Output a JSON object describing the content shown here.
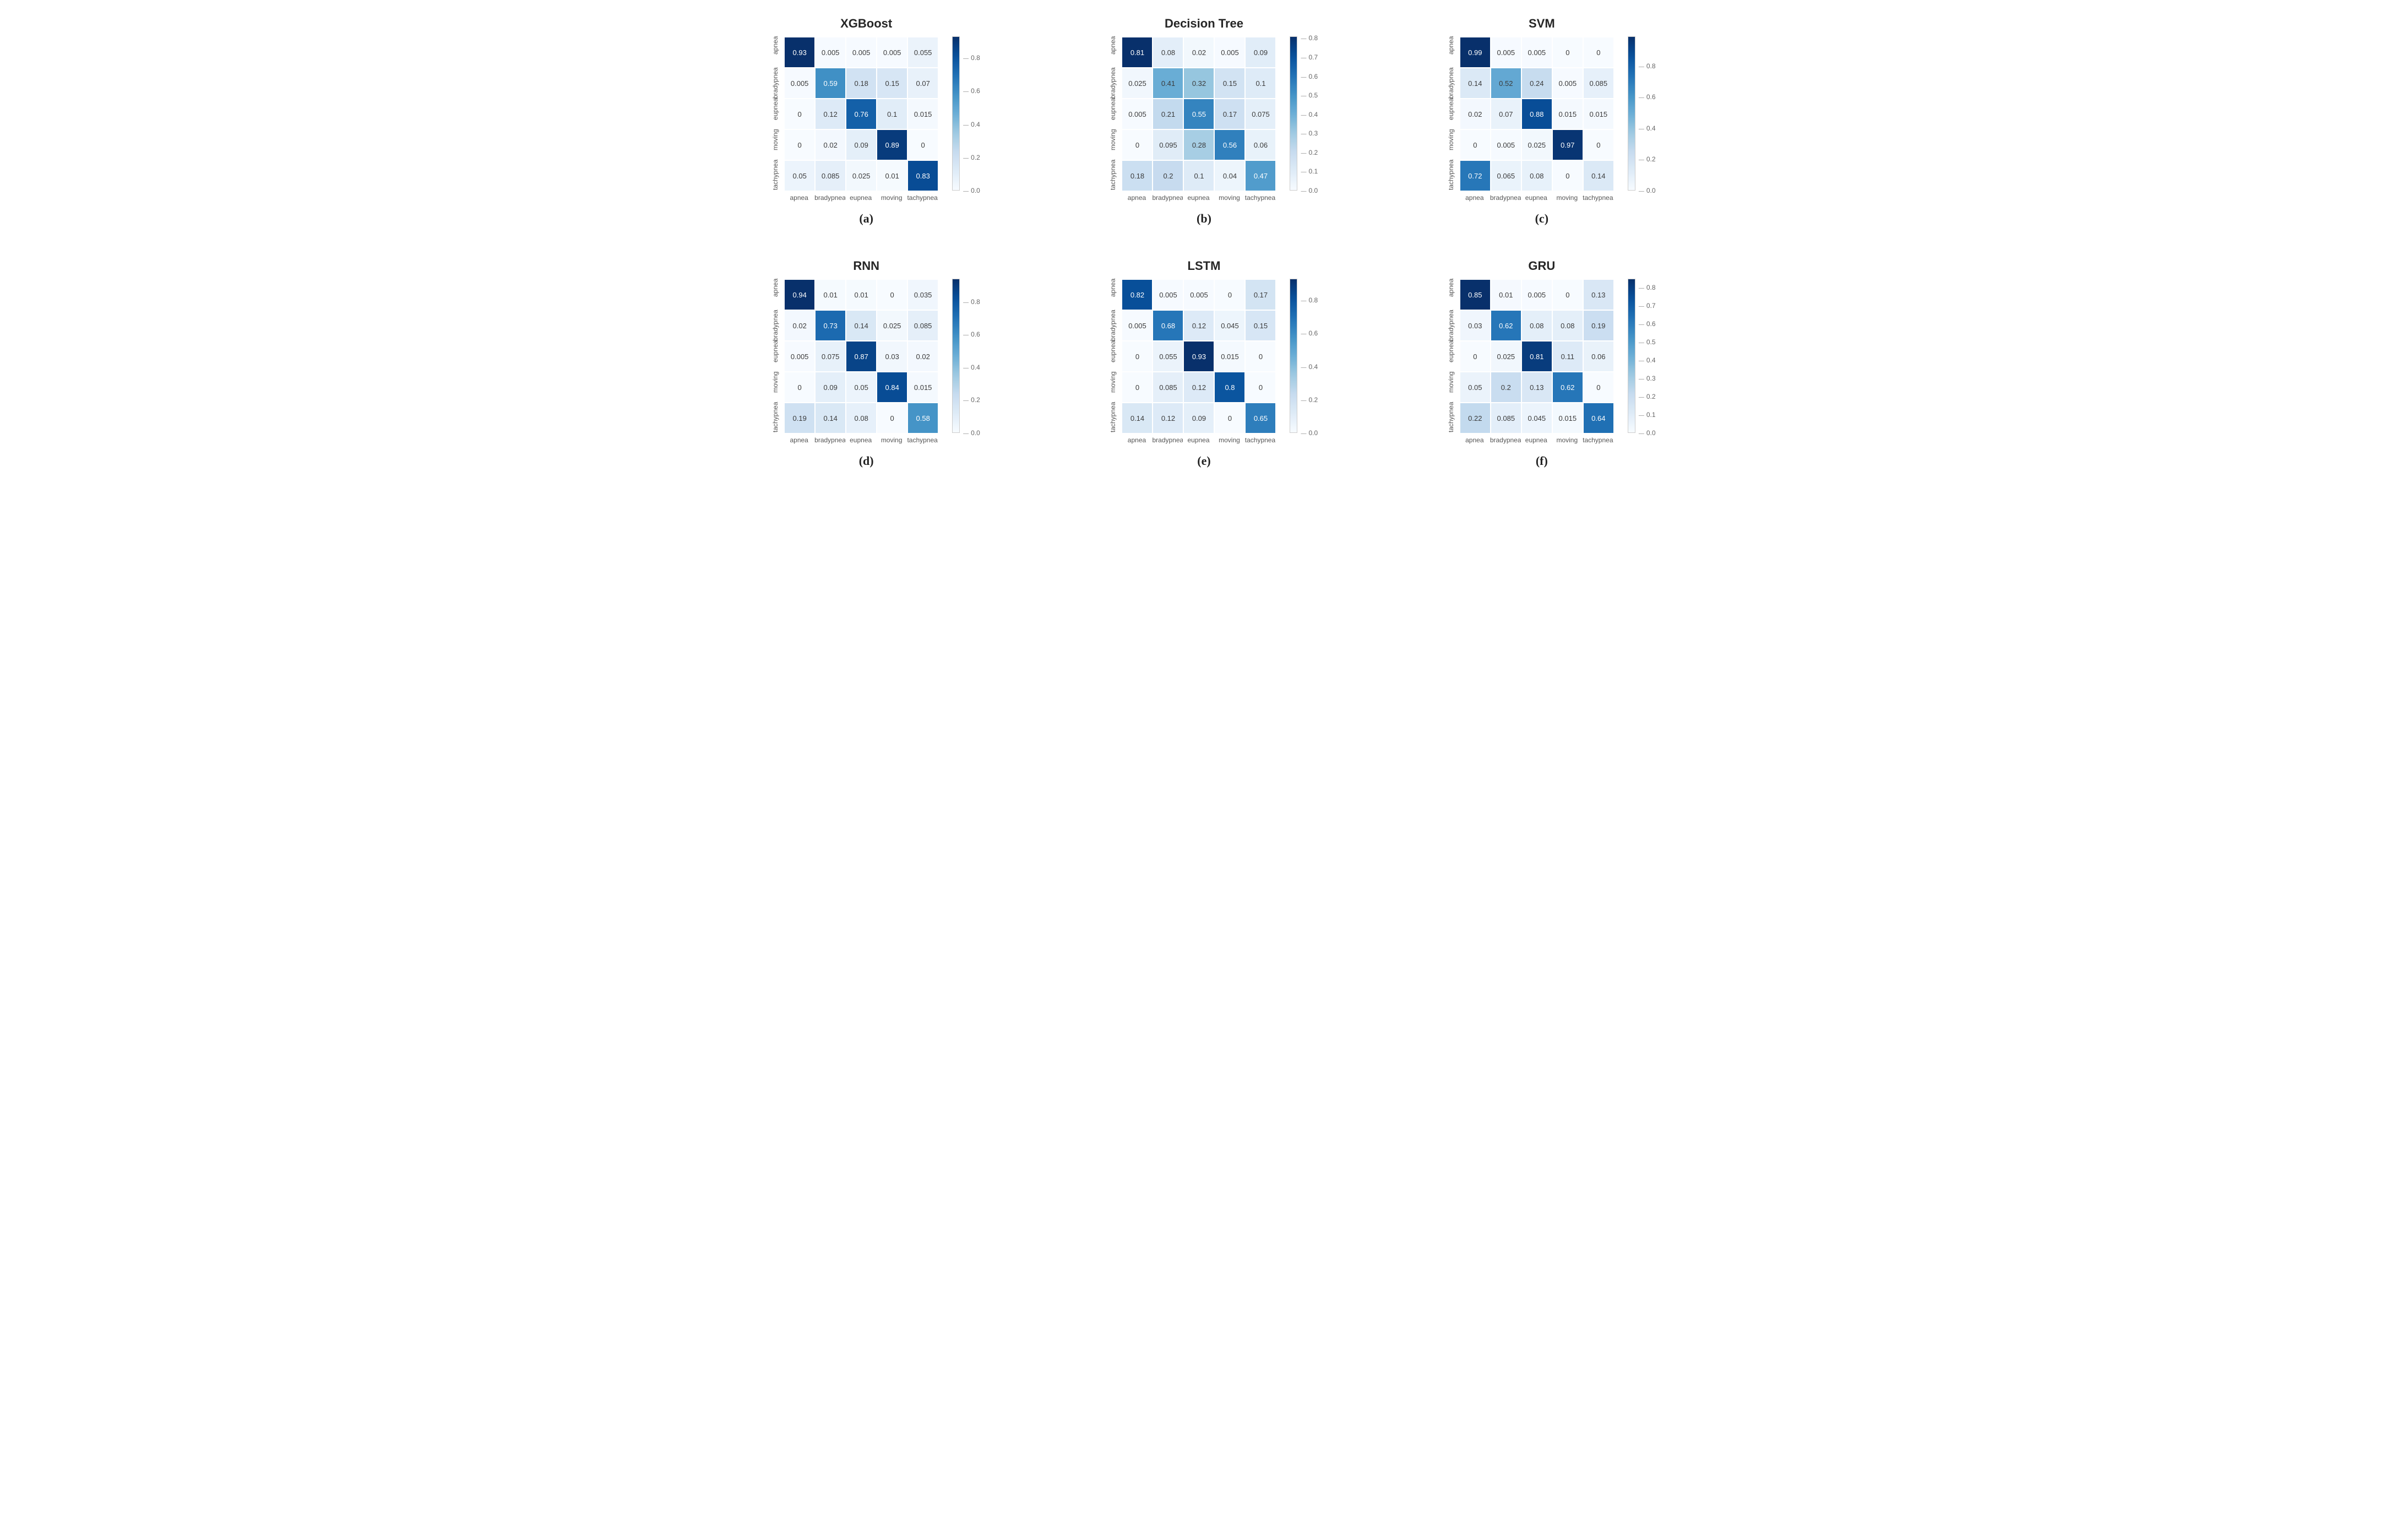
{
  "cell_size": 56,
  "labels": [
    "apnea",
    "bradypnea",
    "eupnea",
    "moving",
    "tachypnea"
  ],
  "colorscale": {
    "low_color_rgb": [
      247,
      251,
      255
    ],
    "high_color_rgb": [
      8,
      48,
      107
    ],
    "text_dark": "#3a3a3a",
    "text_light": "#ffffff",
    "light_threshold": 0.55
  },
  "panels": [
    {
      "id": "a",
      "title": "XGBoost",
      "sub": "(a)",
      "vmax": 0.93,
      "cbar_ticks": [
        0.0,
        0.2,
        0.4,
        0.6,
        0.8
      ],
      "matrix": [
        [
          0.93,
          0.005,
          0.005,
          0.005,
          0.055
        ],
        [
          0.005,
          0.59,
          0.18,
          0.15,
          0.07
        ],
        [
          0,
          0.12,
          0.76,
          0.1,
          0.015
        ],
        [
          0,
          0.02,
          0.09,
          0.89,
          0
        ],
        [
          0.05,
          0.085,
          0.025,
          0.01,
          0.83
        ]
      ]
    },
    {
      "id": "b",
      "title": "Decision Tree",
      "sub": "(b)",
      "vmax": 0.81,
      "cbar_ticks": [
        0.0,
        0.1,
        0.2,
        0.3,
        0.4,
        0.5,
        0.6,
        0.7,
        0.8
      ],
      "matrix": [
        [
          0.81,
          0.08,
          0.02,
          0.005,
          0.09
        ],
        [
          0.025,
          0.41,
          0.32,
          0.15,
          0.1
        ],
        [
          0.005,
          0.21,
          0.55,
          0.17,
          0.075
        ],
        [
          0,
          0.095,
          0.28,
          0.56,
          0.06
        ],
        [
          0.18,
          0.2,
          0.1,
          0.04,
          0.47
        ]
      ]
    },
    {
      "id": "c",
      "title": "SVM",
      "sub": "(c)",
      "vmax": 0.99,
      "cbar_ticks": [
        0.0,
        0.2,
        0.4,
        0.6,
        0.8
      ],
      "matrix": [
        [
          0.99,
          0.005,
          0.005,
          0,
          0
        ],
        [
          0.14,
          0.52,
          0.24,
          0.005,
          0.085
        ],
        [
          0.02,
          0.07,
          0.88,
          0.015,
          0.015
        ],
        [
          0,
          0.005,
          0.025,
          0.97,
          0
        ],
        [
          0.72,
          0.065,
          0.08,
          0,
          0.14
        ]
      ]
    },
    {
      "id": "d",
      "title": "RNN",
      "sub": "(d)",
      "vmax": 0.94,
      "cbar_ticks": [
        0.0,
        0.2,
        0.4,
        0.6,
        0.8
      ],
      "matrix": [
        [
          0.94,
          0.01,
          0.01,
          0,
          0.035
        ],
        [
          0.02,
          0.73,
          0.14,
          0.025,
          0.085
        ],
        [
          0.005,
          0.075,
          0.87,
          0.03,
          0.02
        ],
        [
          0,
          0.09,
          0.05,
          0.84,
          0.015
        ],
        [
          0.19,
          0.14,
          0.08,
          0,
          0.58
        ]
      ]
    },
    {
      "id": "e",
      "title": "LSTM",
      "sub": "(e)",
      "vmax": 0.93,
      "cbar_ticks": [
        0.0,
        0.2,
        0.4,
        0.6,
        0.8
      ],
      "matrix": [
        [
          0.82,
          0.005,
          0.005,
          0,
          0.17
        ],
        [
          0.005,
          0.68,
          0.12,
          0.045,
          0.15
        ],
        [
          0,
          0.055,
          0.93,
          0.015,
          0
        ],
        [
          0,
          0.085,
          0.12,
          0.8,
          0
        ],
        [
          0.14,
          0.12,
          0.09,
          0,
          0.65
        ]
      ]
    },
    {
      "id": "f",
      "title": "GRU",
      "sub": "(f)",
      "vmax": 0.85,
      "cbar_ticks": [
        0.0,
        0.1,
        0.2,
        0.3,
        0.4,
        0.5,
        0.6,
        0.7,
        0.8
      ],
      "matrix": [
        [
          0.85,
          0.01,
          0.005,
          0,
          0.13
        ],
        [
          0.03,
          0.62,
          0.08,
          0.08,
          0.19
        ],
        [
          0,
          0.025,
          0.81,
          0.11,
          0.06
        ],
        [
          0.05,
          0.2,
          0.13,
          0.62,
          0
        ],
        [
          0.22,
          0.085,
          0.045,
          0.015,
          0.64
        ]
      ]
    }
  ]
}
